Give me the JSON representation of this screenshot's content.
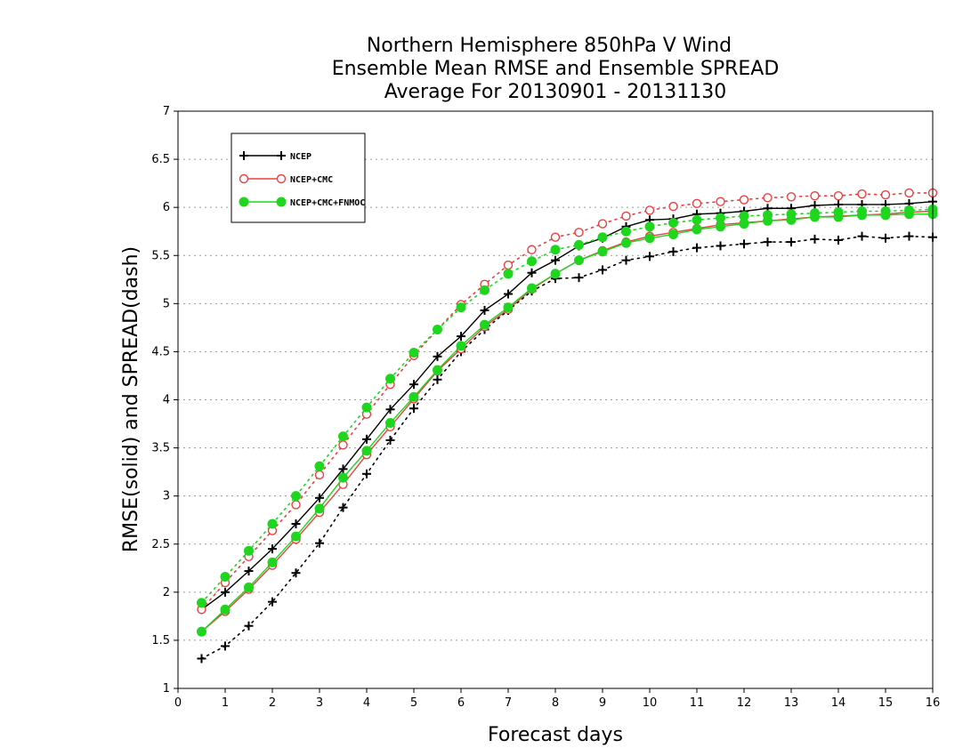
{
  "chart_data": {
    "type": "line",
    "title": [
      "Northern Hemisphere 850hPa V Wind",
      "Ensemble Mean RMSE and Ensemble SPREAD",
      "Average For 20130901 - 20131130"
    ],
    "xlabel": "Forecast days",
    "ylabel": "RMSE(solid) and SPREAD(dash)",
    "xlim": [
      0,
      16
    ],
    "ylim": [
      1,
      7
    ],
    "xticks": [
      0,
      1,
      2,
      3,
      4,
      5,
      6,
      7,
      8,
      9,
      10,
      11,
      12,
      13,
      14,
      15,
      16
    ],
    "xtick_labels": [
      "0",
      "1",
      "2",
      "3",
      "4",
      "5",
      "6",
      "7",
      "8",
      "9",
      "10",
      "11",
      "12",
      "13",
      "14",
      "15",
      "16"
    ],
    "yticks": [
      1,
      1.5,
      2,
      2.5,
      3,
      3.5,
      4,
      4.5,
      5,
      5.5,
      6,
      6.5,
      7
    ],
    "ytick_labels": [
      "1",
      "1.5",
      "2",
      "2.5",
      "3",
      "3.5",
      "4",
      "4.5",
      "5",
      "5.5",
      "6",
      "6.5",
      "7"
    ],
    "grid": true,
    "legend_position": "top-left",
    "x": [
      0.5,
      1,
      1.5,
      2,
      2.5,
      3,
      3.5,
      4,
      4.5,
      5,
      5.5,
      6,
      6.5,
      7,
      7.5,
      8,
      8.5,
      9,
      9.5,
      10,
      10.5,
      11,
      11.5,
      12,
      12.5,
      13,
      13.5,
      14,
      14.5,
      15,
      15.5,
      16
    ],
    "series": [
      {
        "name": "NCEP",
        "color": "#000000",
        "marker": "plus",
        "rmse": [
          1.82,
          2.0,
          2.22,
          2.45,
          2.71,
          2.98,
          3.28,
          3.59,
          3.9,
          4.16,
          4.45,
          4.66,
          4.93,
          5.1,
          5.32,
          5.45,
          5.6,
          5.68,
          5.8,
          5.87,
          5.88,
          5.93,
          5.94,
          5.96,
          5.99,
          5.99,
          6.02,
          6.03,
          6.03,
          6.03,
          6.04,
          6.06
        ],
        "spread": [
          1.31,
          1.44,
          1.65,
          1.9,
          2.2,
          2.51,
          2.88,
          3.23,
          3.58,
          3.91,
          4.21,
          4.5,
          4.73,
          4.93,
          5.13,
          5.26,
          5.27,
          5.35,
          5.45,
          5.49,
          5.54,
          5.58,
          5.6,
          5.62,
          5.64,
          5.64,
          5.67,
          5.66,
          5.7,
          5.68,
          5.7,
          5.69
        ]
      },
      {
        "name": "NCEP+CMC",
        "color": "#e84040",
        "marker": "circle-open",
        "rmse": [
          1.59,
          1.8,
          2.03,
          2.28,
          2.55,
          2.83,
          3.12,
          3.43,
          3.72,
          4.01,
          4.3,
          4.53,
          4.76,
          4.94,
          5.15,
          5.31,
          5.45,
          5.55,
          5.64,
          5.7,
          5.74,
          5.78,
          5.82,
          5.84,
          5.86,
          5.88,
          5.9,
          5.91,
          5.92,
          5.93,
          5.95,
          5.96
        ],
        "spread": [
          1.82,
          2.1,
          2.37,
          2.64,
          2.91,
          3.22,
          3.53,
          3.85,
          4.16,
          4.46,
          4.73,
          4.99,
          5.2,
          5.4,
          5.56,
          5.69,
          5.74,
          5.83,
          5.91,
          5.97,
          6.01,
          6.04,
          6.06,
          6.08,
          6.1,
          6.11,
          6.12,
          6.12,
          6.14,
          6.13,
          6.15,
          6.15
        ]
      },
      {
        "name": "NCEP+CMC+FNMOC",
        "color": "#1ed61e",
        "marker": "circle-filled",
        "rmse": [
          1.59,
          1.82,
          2.05,
          2.31,
          2.58,
          2.87,
          3.19,
          3.47,
          3.76,
          4.03,
          4.31,
          4.56,
          4.78,
          4.96,
          5.16,
          5.31,
          5.45,
          5.54,
          5.63,
          5.68,
          5.72,
          5.77,
          5.8,
          5.83,
          5.86,
          5.87,
          5.9,
          5.9,
          5.92,
          5.92,
          5.93,
          5.93
        ],
        "spread": [
          1.89,
          2.16,
          2.43,
          2.71,
          3.0,
          3.31,
          3.62,
          3.92,
          4.22,
          4.49,
          4.73,
          4.96,
          5.14,
          5.31,
          5.44,
          5.56,
          5.61,
          5.69,
          5.75,
          5.8,
          5.84,
          5.87,
          5.89,
          5.91,
          5.92,
          5.93,
          5.94,
          5.95,
          5.96,
          5.96,
          5.97,
          5.98
        ]
      }
    ]
  }
}
